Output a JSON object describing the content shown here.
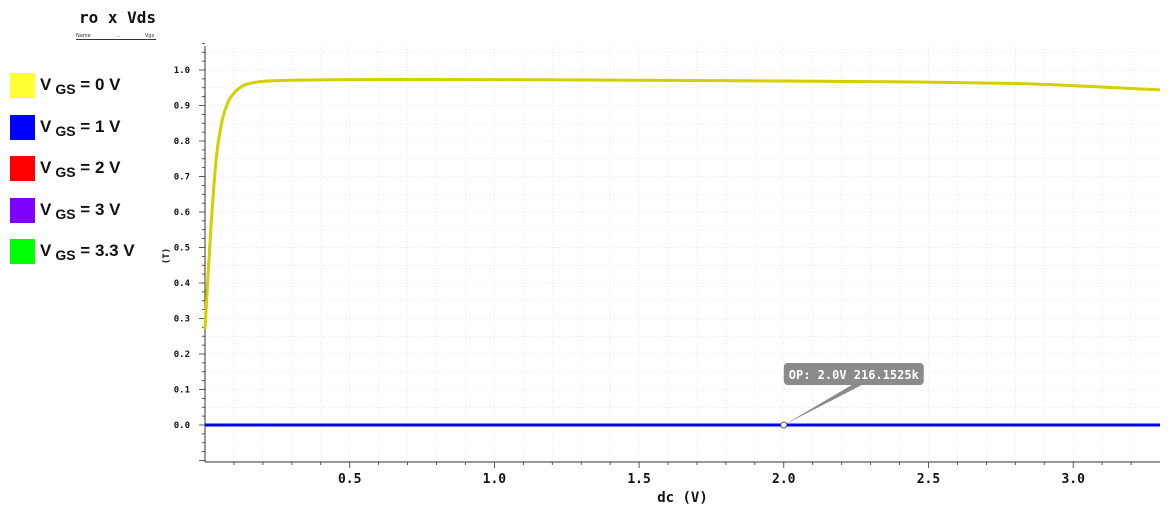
{
  "chart_data": {
    "type": "line",
    "title": "ro x Vds",
    "subheader": [
      "Name",
      "...",
      "Vgs"
    ],
    "xlabel": "dc (V)",
    "ylabel": "(T)",
    "xlim": [
      0.0,
      3.3
    ],
    "ylim": [
      -0.1,
      1.08
    ],
    "xticks": [
      "0.5",
      "1.0",
      "1.5",
      "2.0",
      "2.5",
      "3.0"
    ],
    "yticks": [
      "0.0",
      "0.1",
      "0.2",
      "0.3",
      "0.4",
      "0.5",
      "0.6",
      "0.7",
      "0.8",
      "0.9",
      "1.0"
    ],
    "grid": true,
    "legend_position": "left",
    "series": [
      {
        "name_main": "V",
        "name_sub": "GS",
        "name_value": "= 0 V",
        "color": "#d4cf00",
        "swatch": "#ffff33",
        "x": [
          0.0,
          0.02,
          0.04,
          0.06,
          0.08,
          0.1,
          0.13,
          0.16,
          0.2,
          0.3,
          0.5,
          1.0,
          1.5,
          2.0,
          2.5,
          2.8,
          3.0,
          3.2,
          3.3
        ],
        "y": [
          0.27,
          0.55,
          0.76,
          0.86,
          0.91,
          0.935,
          0.955,
          0.963,
          0.968,
          0.971,
          0.973,
          0.973,
          0.971,
          0.969,
          0.966,
          0.962,
          0.956,
          0.948,
          0.944
        ]
      },
      {
        "name_main": "V",
        "name_sub": "GS",
        "name_value": "= 1 V",
        "color": "#0000ee",
        "swatch": "#0000ff",
        "x": [
          0.0,
          3.3
        ],
        "y": [
          0.0,
          0.0
        ]
      },
      {
        "name_main": "V",
        "name_sub": "GS",
        "name_value": "= 2 V",
        "color": "#ff0000",
        "swatch": "#ff0000",
        "x": [
          0.0,
          3.3
        ],
        "y": [
          0.0,
          0.0
        ]
      },
      {
        "name_main": "V",
        "name_sub": "GS",
        "name_value": "= 3 V",
        "color": "#8000ff",
        "swatch": "#8000ff",
        "x": [
          0.0,
          3.3
        ],
        "y": [
          0.0,
          0.0
        ]
      },
      {
        "name_main": "V",
        "name_sub": "GS",
        "name_value": "= 3.3 V",
        "color": "#00ff00",
        "swatch": "#00ff00",
        "x": [
          0.0,
          3.3
        ],
        "y": [
          0.0,
          0.0
        ]
      }
    ],
    "annotation": {
      "text": "OP: 2.0V 216.1525k",
      "x": 2.0,
      "y": 0.0
    }
  }
}
